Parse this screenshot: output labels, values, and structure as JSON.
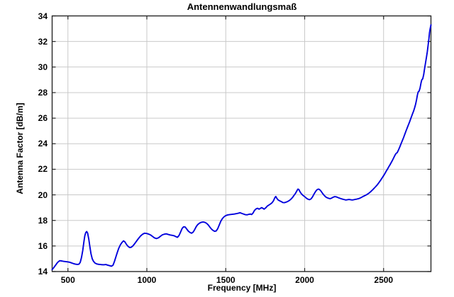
{
  "title": "Antennenwandlungsmaß",
  "colors": {
    "line": "#0000dd",
    "grid": "#c9c9c9",
    "frame": "#262626",
    "background": "#ffffff",
    "text": "#000000"
  },
  "chart_data": {
    "type": "line",
    "title": "Antennenwandlungsmaß",
    "xlabel": "Frequency [MHz]",
    "ylabel": "Antenna Factor [dB/m]",
    "xlim": [
      400,
      2800
    ],
    "ylim": [
      14,
      34
    ],
    "xticks": [
      500,
      1000,
      1500,
      2000,
      2500
    ],
    "yticks": [
      14,
      16,
      18,
      20,
      22,
      24,
      26,
      28,
      30,
      32,
      34
    ],
    "grid": true,
    "legend_position": "none",
    "series": [
      {
        "name": "Antenna Factor",
        "color": "#0000dd",
        "points": [
          [
            400,
            14.15
          ],
          [
            410,
            14.3
          ],
          [
            422,
            14.5
          ],
          [
            435,
            14.72
          ],
          [
            448,
            14.85
          ],
          [
            460,
            14.83
          ],
          [
            472,
            14.8
          ],
          [
            485,
            14.78
          ],
          [
            498,
            14.76
          ],
          [
            510,
            14.73
          ],
          [
            522,
            14.68
          ],
          [
            535,
            14.62
          ],
          [
            548,
            14.58
          ],
          [
            560,
            14.56
          ],
          [
            570,
            14.58
          ],
          [
            578,
            14.72
          ],
          [
            586,
            15.1
          ],
          [
            594,
            15.65
          ],
          [
            601,
            16.3
          ],
          [
            607,
            16.8
          ],
          [
            613,
            17.05
          ],
          [
            619,
            17.13
          ],
          [
            625,
            17.0
          ],
          [
            632,
            16.55
          ],
          [
            639,
            15.95
          ],
          [
            646,
            15.4
          ],
          [
            654,
            15.0
          ],
          [
            662,
            14.8
          ],
          [
            672,
            14.66
          ],
          [
            684,
            14.59
          ],
          [
            697,
            14.56
          ],
          [
            712,
            14.54
          ],
          [
            727,
            14.53
          ],
          [
            740,
            14.55
          ],
          [
            752,
            14.5
          ],
          [
            764,
            14.46
          ],
          [
            776,
            14.42
          ],
          [
            786,
            14.5
          ],
          [
            795,
            14.8
          ],
          [
            804,
            15.15
          ],
          [
            813,
            15.5
          ],
          [
            822,
            15.82
          ],
          [
            832,
            16.08
          ],
          [
            842,
            16.27
          ],
          [
            852,
            16.4
          ],
          [
            861,
            16.32
          ],
          [
            871,
            16.12
          ],
          [
            881,
            15.97
          ],
          [
            891,
            15.88
          ],
          [
            901,
            15.9
          ],
          [
            911,
            16.0
          ],
          [
            923,
            16.18
          ],
          [
            936,
            16.4
          ],
          [
            948,
            16.6
          ],
          [
            960,
            16.78
          ],
          [
            973,
            16.92
          ],
          [
            986,
            17.0
          ],
          [
            999,
            16.98
          ],
          [
            1011,
            16.93
          ],
          [
            1024,
            16.86
          ],
          [
            1037,
            16.74
          ],
          [
            1049,
            16.63
          ],
          [
            1061,
            16.58
          ],
          [
            1074,
            16.64
          ],
          [
            1086,
            16.76
          ],
          [
            1098,
            16.87
          ],
          [
            1110,
            16.92
          ],
          [
            1123,
            16.95
          ],
          [
            1136,
            16.9
          ],
          [
            1148,
            16.86
          ],
          [
            1161,
            16.83
          ],
          [
            1173,
            16.8
          ],
          [
            1184,
            16.73
          ],
          [
            1194,
            16.68
          ],
          [
            1204,
            16.82
          ],
          [
            1214,
            17.1
          ],
          [
            1224,
            17.38
          ],
          [
            1233,
            17.5
          ],
          [
            1243,
            17.48
          ],
          [
            1253,
            17.32
          ],
          [
            1263,
            17.16
          ],
          [
            1273,
            17.06
          ],
          [
            1283,
            17.0
          ],
          [
            1293,
            17.08
          ],
          [
            1303,
            17.28
          ],
          [
            1313,
            17.52
          ],
          [
            1323,
            17.68
          ],
          [
            1334,
            17.79
          ],
          [
            1345,
            17.85
          ],
          [
            1356,
            17.88
          ],
          [
            1367,
            17.85
          ],
          [
            1378,
            17.78
          ],
          [
            1389,
            17.65
          ],
          [
            1399,
            17.48
          ],
          [
            1409,
            17.33
          ],
          [
            1419,
            17.22
          ],
          [
            1429,
            17.15
          ],
          [
            1439,
            17.17
          ],
          [
            1449,
            17.35
          ],
          [
            1459,
            17.65
          ],
          [
            1469,
            17.95
          ],
          [
            1479,
            18.15
          ],
          [
            1489,
            18.28
          ],
          [
            1499,
            18.37
          ],
          [
            1512,
            18.43
          ],
          [
            1526,
            18.46
          ],
          [
            1540,
            18.48
          ],
          [
            1554,
            18.5
          ],
          [
            1568,
            18.53
          ],
          [
            1581,
            18.57
          ],
          [
            1591,
            18.6
          ],
          [
            1601,
            18.55
          ],
          [
            1612,
            18.5
          ],
          [
            1624,
            18.45
          ],
          [
            1636,
            18.44
          ],
          [
            1647,
            18.48
          ],
          [
            1656,
            18.5
          ],
          [
            1664,
            18.46
          ],
          [
            1673,
            18.58
          ],
          [
            1682,
            18.78
          ],
          [
            1692,
            18.9
          ],
          [
            1702,
            18.95
          ],
          [
            1711,
            18.88
          ],
          [
            1719,
            18.94
          ],
          [
            1727,
            19.0
          ],
          [
            1735,
            18.95
          ],
          [
            1743,
            18.88
          ],
          [
            1753,
            18.98
          ],
          [
            1763,
            19.12
          ],
          [
            1773,
            19.2
          ],
          [
            1783,
            19.28
          ],
          [
            1793,
            19.38
          ],
          [
            1803,
            19.55
          ],
          [
            1811,
            19.78
          ],
          [
            1817,
            19.87
          ],
          [
            1824,
            19.72
          ],
          [
            1832,
            19.6
          ],
          [
            1842,
            19.53
          ],
          [
            1852,
            19.47
          ],
          [
            1862,
            19.4
          ],
          [
            1872,
            19.39
          ],
          [
            1882,
            19.43
          ],
          [
            1892,
            19.48
          ],
          [
            1902,
            19.55
          ],
          [
            1912,
            19.65
          ],
          [
            1922,
            19.78
          ],
          [
            1932,
            19.95
          ],
          [
            1942,
            20.12
          ],
          [
            1950,
            20.3
          ],
          [
            1957,
            20.45
          ],
          [
            1963,
            20.42
          ],
          [
            1970,
            20.25
          ],
          [
            1978,
            20.1
          ],
          [
            1988,
            19.97
          ],
          [
            1998,
            19.88
          ],
          [
            2008,
            19.77
          ],
          [
            2018,
            19.68
          ],
          [
            2030,
            19.62
          ],
          [
            2040,
            19.68
          ],
          [
            2050,
            19.85
          ],
          [
            2060,
            20.08
          ],
          [
            2070,
            20.28
          ],
          [
            2078,
            20.4
          ],
          [
            2086,
            20.45
          ],
          [
            2094,
            20.42
          ],
          [
            2103,
            20.3
          ],
          [
            2113,
            20.12
          ],
          [
            2122,
            19.98
          ],
          [
            2131,
            19.86
          ],
          [
            2141,
            19.78
          ],
          [
            2151,
            19.73
          ],
          [
            2161,
            19.7
          ],
          [
            2171,
            19.75
          ],
          [
            2181,
            19.82
          ],
          [
            2191,
            19.86
          ],
          [
            2201,
            19.84
          ],
          [
            2211,
            19.79
          ],
          [
            2221,
            19.74
          ],
          [
            2231,
            19.7
          ],
          [
            2241,
            19.66
          ],
          [
            2251,
            19.63
          ],
          [
            2261,
            19.6
          ],
          [
            2271,
            19.62
          ],
          [
            2281,
            19.64
          ],
          [
            2291,
            19.62
          ],
          [
            2301,
            19.6
          ],
          [
            2311,
            19.62
          ],
          [
            2321,
            19.65
          ],
          [
            2331,
            19.67
          ],
          [
            2341,
            19.7
          ],
          [
            2351,
            19.75
          ],
          [
            2361,
            19.81
          ],
          [
            2371,
            19.88
          ],
          [
            2381,
            19.94
          ],
          [
            2391,
            20.0
          ],
          [
            2401,
            20.08
          ],
          [
            2411,
            20.17
          ],
          [
            2421,
            20.28
          ],
          [
            2431,
            20.4
          ],
          [
            2441,
            20.53
          ],
          [
            2451,
            20.66
          ],
          [
            2461,
            20.8
          ],
          [
            2471,
            20.97
          ],
          [
            2481,
            21.14
          ],
          [
            2491,
            21.33
          ],
          [
            2500,
            21.5
          ],
          [
            2508,
            21.66
          ],
          [
            2516,
            21.84
          ],
          [
            2524,
            22.0
          ],
          [
            2532,
            22.18
          ],
          [
            2540,
            22.34
          ],
          [
            2548,
            22.52
          ],
          [
            2556,
            22.7
          ],
          [
            2564,
            22.9
          ],
          [
            2572,
            23.1
          ],
          [
            2579,
            23.24
          ],
          [
            2586,
            23.3
          ],
          [
            2594,
            23.5
          ],
          [
            2602,
            23.73
          ],
          [
            2610,
            23.98
          ],
          [
            2618,
            24.22
          ],
          [
            2626,
            24.46
          ],
          [
            2634,
            24.73
          ],
          [
            2642,
            25.0
          ],
          [
            2650,
            25.25
          ],
          [
            2658,
            25.5
          ],
          [
            2666,
            25.75
          ],
          [
            2674,
            26.03
          ],
          [
            2682,
            26.3
          ],
          [
            2690,
            26.55
          ],
          [
            2697,
            26.83
          ],
          [
            2703,
            27.1
          ],
          [
            2709,
            27.45
          ],
          [
            2714,
            27.8
          ],
          [
            2719,
            28.05
          ],
          [
            2725,
            28.12
          ],
          [
            2731,
            28.35
          ],
          [
            2737,
            28.75
          ],
          [
            2742,
            29.0
          ],
          [
            2748,
            29.08
          ],
          [
            2754,
            29.4
          ],
          [
            2760,
            29.9
          ],
          [
            2766,
            30.35
          ],
          [
            2772,
            30.8
          ],
          [
            2777,
            31.2
          ],
          [
            2782,
            31.7
          ],
          [
            2787,
            32.2
          ],
          [
            2791,
            32.7
          ],
          [
            2795,
            33.0
          ],
          [
            2800,
            33.3
          ]
        ]
      }
    ]
  }
}
